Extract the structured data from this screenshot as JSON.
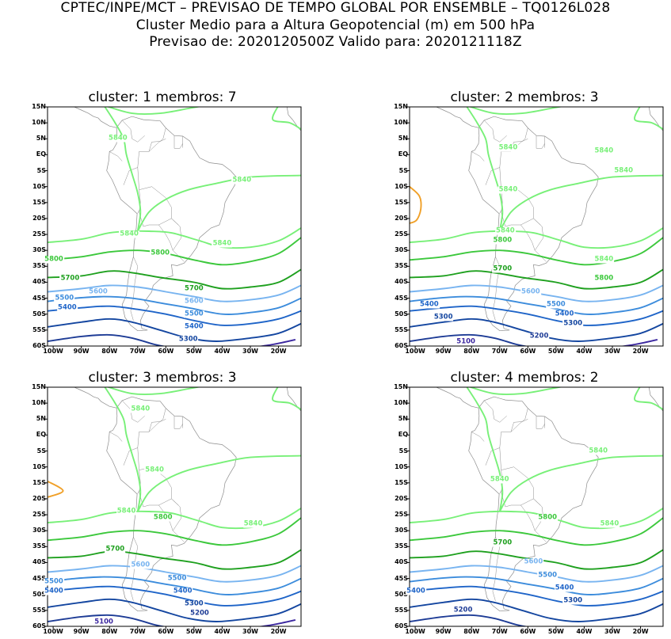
{
  "header": {
    "line1": "CPTEC/INPE/MCT – PREVISAO DE TEMPO GLOBAL POR ENSEMBLE – TQ0126L028",
    "line2": "Cluster Medio para a Altura Geopotencial (m) em 500 hPa",
    "line3": "Previsao de: 2020120500Z   Valido para: 2020121118Z"
  },
  "axes": {
    "lat_ticks": [
      "15N",
      "10N",
      "5N",
      "EQ",
      "5S",
      "10S",
      "15S",
      "20S",
      "25S",
      "30S",
      "35S",
      "40S",
      "45S",
      "50S",
      "55S",
      "60S"
    ],
    "lon_ticks": [
      "100W",
      "90W",
      "80W",
      "70W",
      "60W",
      "50W",
      "40W",
      "30W",
      "20W"
    ]
  },
  "colors": {
    "c5840": "#78f078",
    "c5800": "#3cc83c",
    "c5700": "#1ea01e",
    "c5600": "#78b4f0",
    "c5500": "#3c8cdc",
    "c5400": "#1e64c8",
    "c5300": "#1446a0",
    "c5200": "#1e3c96",
    "c5100": "#3c28a0",
    "c5900": "#f0a028",
    "coast": "#8c8c8c"
  },
  "panels": [
    {
      "title": "cluster: 1   membros: 7",
      "labels": [
        {
          "text": "5840",
          "c": "c5840",
          "lon": -77,
          "lat": 5
        },
        {
          "text": "5840",
          "c": "c5840",
          "lon": -33,
          "lat": -8
        },
        {
          "text": "5840",
          "c": "c5840",
          "lon": -73,
          "lat": -25
        },
        {
          "text": "5840",
          "c": "c5840",
          "lon": -40,
          "lat": -28
        },
        {
          "text": "5800",
          "c": "c5800",
          "lon": -100,
          "lat": -33
        },
        {
          "text": "5800",
          "c": "c5800",
          "lon": -62,
          "lat": -31
        },
        {
          "text": "5700",
          "c": "c5700",
          "lon": -94,
          "lat": -39
        },
        {
          "text": "5700",
          "c": "c5700",
          "lon": -50,
          "lat": -42
        },
        {
          "text": "5600",
          "c": "c5600",
          "lon": -84,
          "lat": -43
        },
        {
          "text": "5600",
          "c": "c5600",
          "lon": -50,
          "lat": -46
        },
        {
          "text": "5500",
          "c": "c5500",
          "lon": -96,
          "lat": -45
        },
        {
          "text": "5500",
          "c": "c5500",
          "lon": -50,
          "lat": -50
        },
        {
          "text": "5400",
          "c": "c5400",
          "lon": -95,
          "lat": -48
        },
        {
          "text": "5400",
          "c": "c5400",
          "lon": -50,
          "lat": -54
        },
        {
          "text": "5300",
          "c": "c5300",
          "lon": -52,
          "lat": -58
        }
      ]
    },
    {
      "title": "cluster: 2   membros: 3",
      "labels": [
        {
          "text": "5840",
          "c": "c5840",
          "lon": -67,
          "lat": 2
        },
        {
          "text": "5840",
          "c": "c5840",
          "lon": -33,
          "lat": 1
        },
        {
          "text": "5840",
          "c": "c5840",
          "lon": -26,
          "lat": -5
        },
        {
          "text": "5840",
          "c": "c5840",
          "lon": -67,
          "lat": -11
        },
        {
          "text": "5840",
          "c": "c5840",
          "lon": -68,
          "lat": -24
        },
        {
          "text": "5840",
          "c": "c5840",
          "lon": -33,
          "lat": -33
        },
        {
          "text": "5800",
          "c": "c5800",
          "lon": -69,
          "lat": -27
        },
        {
          "text": "5800",
          "c": "c5800",
          "lon": -33,
          "lat": -39
        },
        {
          "text": "5700",
          "c": "c5700",
          "lon": -69,
          "lat": -36
        },
        {
          "text": "5600",
          "c": "c5600",
          "lon": -59,
          "lat": -43
        },
        {
          "text": "5500",
          "c": "c5500",
          "lon": -50,
          "lat": -47
        },
        {
          "text": "5400",
          "c": "c5400",
          "lon": -95,
          "lat": -47
        },
        {
          "text": "5400",
          "c": "c5400",
          "lon": -47,
          "lat": -50
        },
        {
          "text": "5300",
          "c": "c5300",
          "lon": -90,
          "lat": -51
        },
        {
          "text": "5300",
          "c": "c5300",
          "lon": -44,
          "lat": -53
        },
        {
          "text": "5200",
          "c": "c5200",
          "lon": -56,
          "lat": -57
        },
        {
          "text": "5100",
          "c": "c5100",
          "lon": -82,
          "lat": -59
        }
      ]
    },
    {
      "title": "cluster: 3   membros: 3",
      "labels": [
        {
          "text": "5840",
          "c": "c5840",
          "lon": -69,
          "lat": 8
        },
        {
          "text": "5840",
          "c": "c5840",
          "lon": -64,
          "lat": -11
        },
        {
          "text": "5840",
          "c": "c5840",
          "lon": -74,
          "lat": -24
        },
        {
          "text": "5840",
          "c": "c5840",
          "lon": -29,
          "lat": -28
        },
        {
          "text": "5800",
          "c": "c5800",
          "lon": -61,
          "lat": -26
        },
        {
          "text": "5700",
          "c": "c5700",
          "lon": -78,
          "lat": -36
        },
        {
          "text": "5600",
          "c": "c5600",
          "lon": -69,
          "lat": -41
        },
        {
          "text": "5500",
          "c": "c5500",
          "lon": -102,
          "lat": -46
        },
        {
          "text": "5500",
          "c": "c5500",
          "lon": -56,
          "lat": -45
        },
        {
          "text": "5400",
          "c": "c5400",
          "lon": -102,
          "lat": -49
        },
        {
          "text": "5400",
          "c": "c5400",
          "lon": -54,
          "lat": -49
        },
        {
          "text": "5300",
          "c": "c5300",
          "lon": -50,
          "lat": -53
        },
        {
          "text": "5200",
          "c": "c5200",
          "lon": -48,
          "lat": -56
        },
        {
          "text": "5100",
          "c": "c5100",
          "lon": -82,
          "lat": -59
        }
      ]
    },
    {
      "title": "cluster: 4   membros: 2",
      "labels": [
        {
          "text": "5840",
          "c": "c5840",
          "lon": -35,
          "lat": -5
        },
        {
          "text": "5840",
          "c": "c5840",
          "lon": -70,
          "lat": -14
        },
        {
          "text": "5840",
          "c": "c5840",
          "lon": -31,
          "lat": -28
        },
        {
          "text": "5800",
          "c": "c5800",
          "lon": -53,
          "lat": -26
        },
        {
          "text": "5700",
          "c": "c5700",
          "lon": -69,
          "lat": -34
        },
        {
          "text": "5600",
          "c": "c5600",
          "lon": -58,
          "lat": -40
        },
        {
          "text": "5500",
          "c": "c5500",
          "lon": -53,
          "lat": -44
        },
        {
          "text": "5400",
          "c": "c5400",
          "lon": -102,
          "lat": -49
        },
        {
          "text": "5400",
          "c": "c5400",
          "lon": -47,
          "lat": -48
        },
        {
          "text": "5300",
          "c": "c5300",
          "lon": -44,
          "lat": -52
        },
        {
          "text": "5200",
          "c": "c5200",
          "lon": -83,
          "lat": -55
        }
      ]
    }
  ]
}
